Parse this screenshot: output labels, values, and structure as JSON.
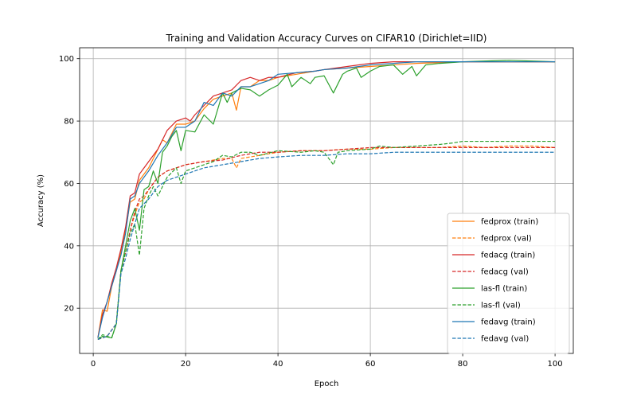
{
  "chart_data": {
    "type": "line",
    "title": "Training and Validation Accuracy Curves on CIFAR10 (Dirichlet=IID)",
    "xlabel": "Epoch",
    "ylabel": "Accuracy (%)",
    "xlim": [
      -2.95,
      103.95
    ],
    "ylim": [
      5.5,
      103.5
    ],
    "xticks": [
      0,
      20,
      40,
      60,
      80,
      100
    ],
    "yticks": [
      20,
      40,
      60,
      80,
      100
    ],
    "grid": true,
    "legend_position": "lower-right",
    "series": [
      {
        "name": "fedprox (train)",
        "color": "#ff7f0e",
        "dash": "solid",
        "points": [
          [
            1,
            10.5
          ],
          [
            2,
            19.5
          ],
          [
            3,
            19
          ],
          [
            4,
            27
          ],
          [
            5,
            32
          ],
          [
            6,
            38
          ],
          [
            7,
            45
          ],
          [
            8,
            54
          ],
          [
            9,
            55
          ],
          [
            10,
            61
          ],
          [
            12,
            65
          ],
          [
            14,
            71
          ],
          [
            15,
            74
          ],
          [
            16,
            73
          ],
          [
            18,
            79
          ],
          [
            20,
            79
          ],
          [
            22,
            80
          ],
          [
            24,
            84
          ],
          [
            26,
            87
          ],
          [
            28,
            88
          ],
          [
            30,
            89
          ],
          [
            31,
            83.5
          ],
          [
            32,
            91
          ],
          [
            34,
            91
          ],
          [
            36,
            93
          ],
          [
            38,
            93
          ],
          [
            40,
            94
          ],
          [
            44,
            95
          ],
          [
            48,
            96
          ],
          [
            50,
            96.5
          ],
          [
            55,
            97
          ],
          [
            60,
            97.5
          ],
          [
            65,
            98
          ],
          [
            70,
            98.5
          ],
          [
            80,
            99
          ],
          [
            90,
            99
          ],
          [
            100,
            99
          ]
        ]
      },
      {
        "name": "fedprox (val)",
        "color": "#ff7f0e",
        "dash": "dashed",
        "points": [
          [
            1,
            10
          ],
          [
            3,
            11
          ],
          [
            5,
            15
          ],
          [
            6,
            32
          ],
          [
            7,
            38
          ],
          [
            8,
            45
          ],
          [
            9,
            50
          ],
          [
            10,
            54
          ],
          [
            11,
            55
          ],
          [
            12,
            58
          ],
          [
            14,
            62
          ],
          [
            16,
            64
          ],
          [
            18,
            65
          ],
          [
            20,
            66
          ],
          [
            24,
            67
          ],
          [
            28,
            68
          ],
          [
            30,
            68
          ],
          [
            31,
            65
          ],
          [
            32,
            68
          ],
          [
            36,
            69
          ],
          [
            40,
            70
          ],
          [
            45,
            70.5
          ],
          [
            50,
            70.5
          ],
          [
            55,
            71
          ],
          [
            60,
            71
          ],
          [
            65,
            71.5
          ],
          [
            70,
            71.5
          ],
          [
            75,
            71.5
          ],
          [
            80,
            72
          ],
          [
            85,
            71.5
          ],
          [
            90,
            72
          ],
          [
            95,
            72
          ],
          [
            100,
            71.5
          ]
        ]
      },
      {
        "name": "fedacg (train)",
        "color": "#d62728",
        "dash": "solid",
        "points": [
          [
            1,
            10.5
          ],
          [
            2,
            18
          ],
          [
            3,
            22
          ],
          [
            4,
            28
          ],
          [
            5,
            33
          ],
          [
            6,
            39
          ],
          [
            7,
            46
          ],
          [
            8,
            56
          ],
          [
            9,
            57
          ],
          [
            10,
            63
          ],
          [
            11,
            65
          ],
          [
            12,
            67
          ],
          [
            14,
            71
          ],
          [
            16,
            77
          ],
          [
            18,
            80
          ],
          [
            20,
            81
          ],
          [
            21,
            80
          ],
          [
            22,
            82
          ],
          [
            24,
            85
          ],
          [
            26,
            88
          ],
          [
            28,
            89
          ],
          [
            30,
            90
          ],
          [
            32,
            93
          ],
          [
            34,
            94
          ],
          [
            36,
            93
          ],
          [
            38,
            94
          ],
          [
            40,
            94
          ],
          [
            44,
            95.5
          ],
          [
            48,
            96
          ],
          [
            50,
            96.5
          ],
          [
            55,
            97.5
          ],
          [
            60,
            98.5
          ],
          [
            65,
            99
          ],
          [
            70,
            99
          ],
          [
            80,
            99
          ],
          [
            90,
            99
          ],
          [
            100,
            99
          ]
        ]
      },
      {
        "name": "fedacg (val)",
        "color": "#d62728",
        "dash": "dashed",
        "points": [
          [
            1,
            10
          ],
          [
            3,
            11
          ],
          [
            5,
            15
          ],
          [
            6,
            32
          ],
          [
            7,
            38
          ],
          [
            8,
            45
          ],
          [
            9,
            51
          ],
          [
            10,
            55
          ],
          [
            11,
            56
          ],
          [
            12,
            58
          ],
          [
            14,
            62
          ],
          [
            16,
            64
          ],
          [
            18,
            65
          ],
          [
            20,
            66
          ],
          [
            24,
            67
          ],
          [
            28,
            67.5
          ],
          [
            32,
            69
          ],
          [
            36,
            70
          ],
          [
            40,
            70
          ],
          [
            45,
            70.5
          ],
          [
            50,
            70.5
          ],
          [
            55,
            71
          ],
          [
            60,
            71.5
          ],
          [
            65,
            71.5
          ],
          [
            70,
            71.5
          ],
          [
            80,
            71.5
          ],
          [
            90,
            71.5
          ],
          [
            100,
            71.5
          ]
        ]
      },
      {
        "name": "las-fl (train)",
        "color": "#2ca02c",
        "dash": "solid",
        "points": [
          [
            1,
            10
          ],
          [
            2,
            11
          ],
          [
            4,
            10.5
          ],
          [
            5,
            15
          ],
          [
            6,
            32
          ],
          [
            7,
            40
          ],
          [
            8,
            48
          ],
          [
            9,
            52
          ],
          [
            10,
            45
          ],
          [
            11,
            58
          ],
          [
            12,
            59
          ],
          [
            13,
            64
          ],
          [
            14,
            60
          ],
          [
            15,
            70
          ],
          [
            16,
            72
          ],
          [
            17,
            75
          ],
          [
            18,
            77
          ],
          [
            19,
            70.5
          ],
          [
            20,
            77
          ],
          [
            22,
            76.5
          ],
          [
            24,
            82
          ],
          [
            26,
            79
          ],
          [
            28,
            89
          ],
          [
            29,
            86
          ],
          [
            30,
            89
          ],
          [
            32,
            90.5
          ],
          [
            34,
            90
          ],
          [
            36,
            88
          ],
          [
            38,
            90
          ],
          [
            40,
            91.5
          ],
          [
            42,
            95
          ],
          [
            43,
            91
          ],
          [
            45,
            94
          ],
          [
            47,
            92
          ],
          [
            48,
            94
          ],
          [
            50,
            94.5
          ],
          [
            52,
            89
          ],
          [
            54,
            95
          ],
          [
            55,
            96
          ],
          [
            57,
            97
          ],
          [
            58,
            94
          ],
          [
            60,
            96
          ],
          [
            62,
            97.5
          ],
          [
            65,
            98
          ],
          [
            67,
            95
          ],
          [
            69,
            97.5
          ],
          [
            70,
            94.5
          ],
          [
            72,
            98
          ],
          [
            75,
            98.5
          ],
          [
            80,
            99
          ],
          [
            90,
            99.5
          ],
          [
            100,
            99
          ]
        ]
      },
      {
        "name": "las-fl (val)",
        "color": "#2ca02c",
        "dash": "dashed",
        "points": [
          [
            1,
            10
          ],
          [
            2,
            11.5
          ],
          [
            4,
            10.5
          ],
          [
            5,
            15
          ],
          [
            6,
            32
          ],
          [
            7,
            38
          ],
          [
            8,
            44
          ],
          [
            9,
            47
          ],
          [
            10,
            37
          ],
          [
            11,
            52
          ],
          [
            12,
            56
          ],
          [
            13,
            59
          ],
          [
            14,
            56
          ],
          [
            15,
            59
          ],
          [
            16,
            62
          ],
          [
            18,
            65
          ],
          [
            19,
            60
          ],
          [
            20,
            64
          ],
          [
            22,
            65
          ],
          [
            24,
            66
          ],
          [
            26,
            67
          ],
          [
            28,
            69
          ],
          [
            30,
            68.5
          ],
          [
            32,
            70
          ],
          [
            34,
            70
          ],
          [
            36,
            69
          ],
          [
            40,
            70.5
          ],
          [
            45,
            70
          ],
          [
            48,
            70.5
          ],
          [
            50,
            70
          ],
          [
            52,
            66
          ],
          [
            53,
            70
          ],
          [
            55,
            70.5
          ],
          [
            60,
            71
          ],
          [
            62,
            72
          ],
          [
            65,
            71.5
          ],
          [
            70,
            72
          ],
          [
            75,
            72.5
          ],
          [
            78,
            73
          ],
          [
            80,
            73.5
          ],
          [
            85,
            73.5
          ],
          [
            90,
            73.5
          ],
          [
            95,
            73.5
          ],
          [
            100,
            73.5
          ]
        ]
      },
      {
        "name": "fedavg (train)",
        "color": "#1f77b4",
        "dash": "solid",
        "points": [
          [
            1,
            10.5
          ],
          [
            2,
            17
          ],
          [
            3,
            22
          ],
          [
            4,
            27
          ],
          [
            5,
            32
          ],
          [
            6,
            37
          ],
          [
            7,
            44
          ],
          [
            8,
            55
          ],
          [
            9,
            56
          ],
          [
            10,
            60
          ],
          [
            12,
            64
          ],
          [
            14,
            69
          ],
          [
            16,
            73
          ],
          [
            18,
            78
          ],
          [
            20,
            78
          ],
          [
            22,
            80
          ],
          [
            24,
            86
          ],
          [
            26,
            85
          ],
          [
            28,
            89
          ],
          [
            30,
            88
          ],
          [
            32,
            91
          ],
          [
            34,
            91
          ],
          [
            36,
            92
          ],
          [
            38,
            93
          ],
          [
            40,
            95
          ],
          [
            44,
            95.5
          ],
          [
            48,
            96
          ],
          [
            50,
            96.5
          ],
          [
            55,
            97
          ],
          [
            60,
            98
          ],
          [
            65,
            98.5
          ],
          [
            70,
            99
          ],
          [
            80,
            99
          ],
          [
            90,
            99
          ],
          [
            100,
            99
          ]
        ]
      },
      {
        "name": "fedavg (val)",
        "color": "#1f77b4",
        "dash": "dashed",
        "points": [
          [
            1,
            10
          ],
          [
            3,
            11
          ],
          [
            5,
            15
          ],
          [
            6,
            31
          ],
          [
            7,
            36
          ],
          [
            8,
            42
          ],
          [
            9,
            47
          ],
          [
            10,
            52
          ],
          [
            12,
            55
          ],
          [
            14,
            59
          ],
          [
            16,
            61
          ],
          [
            18,
            62
          ],
          [
            20,
            63
          ],
          [
            24,
            65
          ],
          [
            28,
            66
          ],
          [
            32,
            67
          ],
          [
            36,
            68
          ],
          [
            40,
            68.5
          ],
          [
            45,
            69
          ],
          [
            50,
            69
          ],
          [
            55,
            69.5
          ],
          [
            60,
            69.5
          ],
          [
            65,
            70
          ],
          [
            70,
            70
          ],
          [
            80,
            70
          ],
          [
            90,
            70
          ],
          [
            100,
            70
          ]
        ]
      }
    ]
  }
}
